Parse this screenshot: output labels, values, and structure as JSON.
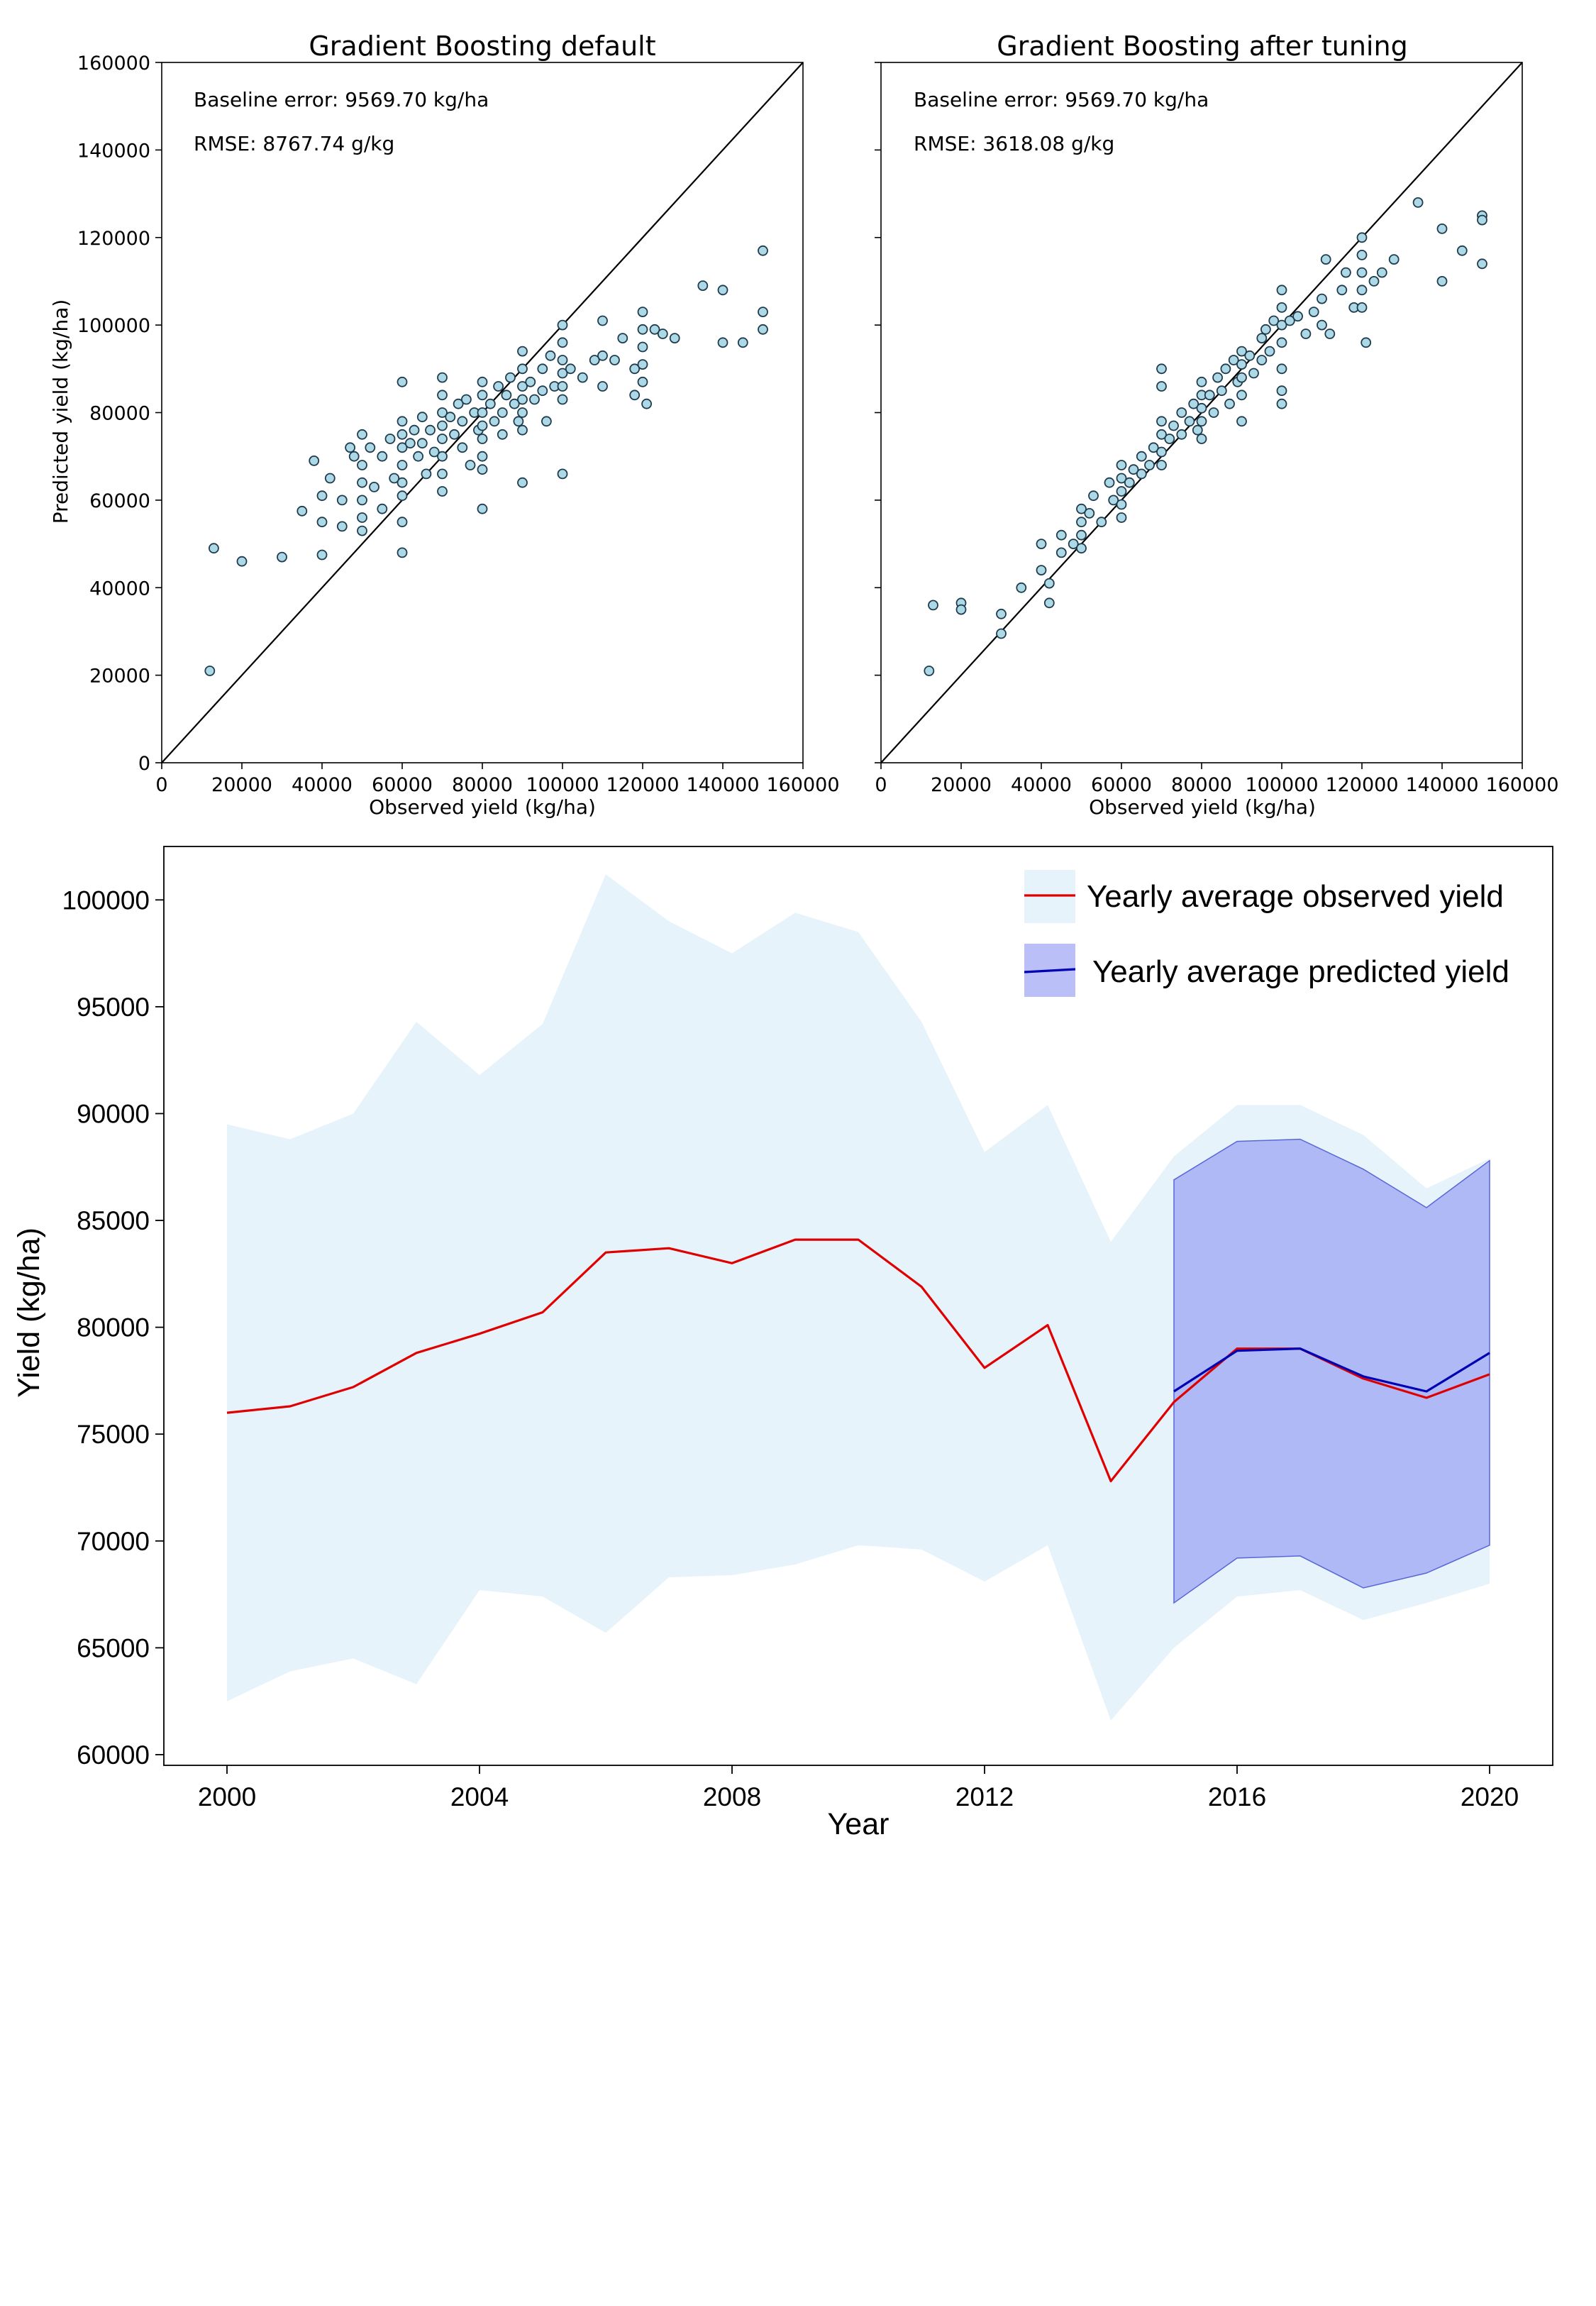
{
  "chart_data": [
    {
      "type": "scatter",
      "title": "Gradient Boosting default",
      "xlabel": "Observed yield (kg/ha)",
      "ylabel": "Predicted yield (kg/ha)",
      "xlim": [
        0,
        160000
      ],
      "ylim": [
        0,
        160000
      ],
      "xticks": [
        "0",
        "20000",
        "40000",
        "60000",
        "80000",
        "100000",
        "120000",
        "140000",
        "160000"
      ],
      "yticks": [
        "0",
        "20000",
        "40000",
        "60000",
        "80000",
        "100000",
        "120000",
        "140000",
        "160000"
      ],
      "annotations": [
        "Baseline error: 9569.70 kg/ha",
        "RMSE: 8767.74 g/kg"
      ],
      "identity_line": true,
      "marker_color": "#add8e6",
      "edge_color": "#1f3b4d",
      "points": [
        [
          12000,
          21000
        ],
        [
          13000,
          49000
        ],
        [
          20000,
          46000
        ],
        [
          30000,
          47000
        ],
        [
          35000,
          57500
        ],
        [
          38000,
          69000
        ],
        [
          40000,
          61000
        ],
        [
          40000,
          55000
        ],
        [
          40000,
          47500
        ],
        [
          42000,
          65000
        ],
        [
          45000,
          60000
        ],
        [
          45000,
          54000
        ],
        [
          47000,
          72000
        ],
        [
          48000,
          70000
        ],
        [
          50000,
          75000
        ],
        [
          50000,
          68000
        ],
        [
          50000,
          64000
        ],
        [
          50000,
          60000
        ],
        [
          50000,
          56000
        ],
        [
          50000,
          53000
        ],
        [
          52000,
          72000
        ],
        [
          53000,
          63000
        ],
        [
          55000,
          70000
        ],
        [
          55000,
          58000
        ],
        [
          57000,
          74000
        ],
        [
          58000,
          65000
        ],
        [
          60000,
          87000
        ],
        [
          60000,
          78000
        ],
        [
          60000,
          75000
        ],
        [
          60000,
          72000
        ],
        [
          60000,
          68000
        ],
        [
          60000,
          64000
        ],
        [
          60000,
          61000
        ],
        [
          60000,
          55000
        ],
        [
          60000,
          48000
        ],
        [
          62000,
          73000
        ],
        [
          63000,
          76000
        ],
        [
          64000,
          70000
        ],
        [
          65000,
          79000
        ],
        [
          65000,
          73000
        ],
        [
          66000,
          66000
        ],
        [
          67000,
          76000
        ],
        [
          68000,
          71000
        ],
        [
          70000,
          88000
        ],
        [
          70000,
          84000
        ],
        [
          70000,
          80000
        ],
        [
          70000,
          77000
        ],
        [
          70000,
          74000
        ],
        [
          70000,
          70000
        ],
        [
          70000,
          66000
        ],
        [
          70000,
          62000
        ],
        [
          72000,
          79000
        ],
        [
          73000,
          75000
        ],
        [
          74000,
          82000
        ],
        [
          75000,
          78000
        ],
        [
          75000,
          72000
        ],
        [
          76000,
          83000
        ],
        [
          77000,
          68000
        ],
        [
          78000,
          80000
        ],
        [
          79000,
          76000
        ],
        [
          80000,
          87000
        ],
        [
          80000,
          84000
        ],
        [
          80000,
          80000
        ],
        [
          80000,
          77000
        ],
        [
          80000,
          74000
        ],
        [
          80000,
          70000
        ],
        [
          80000,
          67000
        ],
        [
          80000,
          58000
        ],
        [
          82000,
          82000
        ],
        [
          83000,
          78000
        ],
        [
          84000,
          86000
        ],
        [
          85000,
          80000
        ],
        [
          85000,
          75000
        ],
        [
          86000,
          84000
        ],
        [
          87000,
          88000
        ],
        [
          88000,
          82000
        ],
        [
          89000,
          78000
        ],
        [
          90000,
          94000
        ],
        [
          90000,
          90000
        ],
        [
          90000,
          86000
        ],
        [
          90000,
          83000
        ],
        [
          90000,
          80000
        ],
        [
          90000,
          76000
        ],
        [
          90000,
          64000
        ],
        [
          92000,
          87000
        ],
        [
          93000,
          83000
        ],
        [
          95000,
          90000
        ],
        [
          95000,
          85000
        ],
        [
          96000,
          78000
        ],
        [
          97000,
          93000
        ],
        [
          98000,
          86000
        ],
        [
          100000,
          100000
        ],
        [
          100000,
          96000
        ],
        [
          100000,
          92000
        ],
        [
          100000,
          89000
        ],
        [
          100000,
          86000
        ],
        [
          100000,
          83000
        ],
        [
          100000,
          66000
        ],
        [
          102000,
          90000
        ],
        [
          105000,
          88000
        ],
        [
          108000,
          92000
        ],
        [
          110000,
          101000
        ],
        [
          110000,
          93000
        ],
        [
          110000,
          86000
        ],
        [
          113000,
          92000
        ],
        [
          115000,
          97000
        ],
        [
          118000,
          90000
        ],
        [
          118000,
          84000
        ],
        [
          120000,
          103000
        ],
        [
          120000,
          99000
        ],
        [
          120000,
          95000
        ],
        [
          120000,
          91000
        ],
        [
          120000,
          87000
        ],
        [
          121000,
          82000
        ],
        [
          123000,
          99000
        ],
        [
          125000,
          98000
        ],
        [
          128000,
          97000
        ],
        [
          135000,
          109000
        ],
        [
          140000,
          108000
        ],
        [
          140000,
          96000
        ],
        [
          145000,
          96000
        ],
        [
          150000,
          117000
        ],
        [
          150000,
          103000
        ],
        [
          150000,
          99000
        ]
      ]
    },
    {
      "type": "scatter",
      "title": "Gradient Boosting after tuning",
      "xlabel": "Observed yield (kg/ha)",
      "xlim": [
        0,
        160000
      ],
      "ylim": [
        0,
        160000
      ],
      "xticks": [
        "0",
        "20000",
        "40000",
        "60000",
        "80000",
        "100000",
        "120000",
        "140000",
        "160000"
      ],
      "annotations": [
        "Baseline error: 9569.70 kg/ha",
        "RMSE: 3618.08 g/kg"
      ],
      "identity_line": true,
      "marker_color": "#add8e6",
      "edge_color": "#1f3b4d",
      "points": [
        [
          12000,
          21000
        ],
        [
          13000,
          36000
        ],
        [
          20000,
          36500
        ],
        [
          20000,
          35000
        ],
        [
          30000,
          29500
        ],
        [
          30000,
          34000
        ],
        [
          35000,
          40000
        ],
        [
          40000,
          50000
        ],
        [
          40000,
          44000
        ],
        [
          42000,
          36500
        ],
        [
          42000,
          41000
        ],
        [
          45000,
          48000
        ],
        [
          45000,
          52000
        ],
        [
          48000,
          50000
        ],
        [
          50000,
          58000
        ],
        [
          50000,
          55000
        ],
        [
          50000,
          52000
        ],
        [
          50000,
          49000
        ],
        [
          52000,
          57000
        ],
        [
          53000,
          61000
        ],
        [
          55000,
          55000
        ],
        [
          57000,
          64000
        ],
        [
          58000,
          60000
        ],
        [
          60000,
          68000
        ],
        [
          60000,
          65000
        ],
        [
          60000,
          62000
        ],
        [
          60000,
          59000
        ],
        [
          60000,
          56000
        ],
        [
          62000,
          64000
        ],
        [
          63000,
          67000
        ],
        [
          65000,
          70000
        ],
        [
          65000,
          66000
        ],
        [
          67000,
          68000
        ],
        [
          68000,
          72000
        ],
        [
          70000,
          90000
        ],
        [
          70000,
          86000
        ],
        [
          70000,
          78000
        ],
        [
          70000,
          75000
        ],
        [
          70000,
          71000
        ],
        [
          70000,
          68000
        ],
        [
          72000,
          74000
        ],
        [
          73000,
          77000
        ],
        [
          75000,
          80000
        ],
        [
          75000,
          75000
        ],
        [
          77000,
          78000
        ],
        [
          78000,
          82000
        ],
        [
          79000,
          76000
        ],
        [
          80000,
          87000
        ],
        [
          80000,
          84000
        ],
        [
          80000,
          81000
        ],
        [
          80000,
          78000
        ],
        [
          80000,
          74000
        ],
        [
          82000,
          84000
        ],
        [
          83000,
          80000
        ],
        [
          84000,
          88000
        ],
        [
          85000,
          85000
        ],
        [
          86000,
          90000
        ],
        [
          87000,
          82000
        ],
        [
          88000,
          92000
        ],
        [
          89000,
          87000
        ],
        [
          90000,
          94000
        ],
        [
          90000,
          91000
        ],
        [
          90000,
          88000
        ],
        [
          90000,
          84000
        ],
        [
          90000,
          78000
        ],
        [
          92000,
          93000
        ],
        [
          93000,
          89000
        ],
        [
          95000,
          97000
        ],
        [
          95000,
          92000
        ],
        [
          96000,
          99000
        ],
        [
          97000,
          94000
        ],
        [
          98000,
          101000
        ],
        [
          100000,
          108000
        ],
        [
          100000,
          104000
        ],
        [
          100000,
          100000
        ],
        [
          100000,
          96000
        ],
        [
          100000,
          90000
        ],
        [
          100000,
          85000
        ],
        [
          100000,
          82000
        ],
        [
          102000,
          101000
        ],
        [
          104000,
          102000
        ],
        [
          106000,
          98000
        ],
        [
          108000,
          103000
        ],
        [
          110000,
          106000
        ],
        [
          110000,
          100000
        ],
        [
          111000,
          115000
        ],
        [
          112000,
          98000
        ],
        [
          115000,
          108000
        ],
        [
          116000,
          112000
        ],
        [
          118000,
          104000
        ],
        [
          120000,
          120000
        ],
        [
          120000,
          116000
        ],
        [
          120000,
          112000
        ],
        [
          120000,
          108000
        ],
        [
          120000,
          104000
        ],
        [
          121000,
          96000
        ],
        [
          123000,
          110000
        ],
        [
          125000,
          112000
        ],
        [
          128000,
          115000
        ],
        [
          134000,
          128000
        ],
        [
          140000,
          122000
        ],
        [
          140000,
          110000
        ],
        [
          145000,
          117000
        ],
        [
          150000,
          125000
        ],
        [
          150000,
          124000
        ],
        [
          150000,
          114000
        ]
      ]
    },
    {
      "type": "line",
      "ylabel": "Yield (kg/ha)",
      "xlabel": "Year",
      "xlim": [
        1999,
        2021
      ],
      "ylim": [
        59500,
        102500
      ],
      "xticks": [
        "2000",
        "2004",
        "2008",
        "2012",
        "2016",
        "2020"
      ],
      "yticks": [
        "60000",
        "65000",
        "70000",
        "75000",
        "80000",
        "85000",
        "90000",
        "95000",
        "100000"
      ],
      "legend_position": "top-right",
      "observed": {
        "name": "Yearly average observed yield",
        "color": "#e00000",
        "band_color": "#d6ecf7",
        "x": [
          2000,
          2001,
          2002,
          2003,
          2004,
          2005,
          2006,
          2007,
          2008,
          2009,
          2010,
          2011,
          2012,
          2013,
          2014,
          2015,
          2016,
          2017,
          2018,
          2019,
          2020
        ],
        "values": [
          76000,
          76300,
          77200,
          78800,
          79700,
          80700,
          83500,
          83700,
          83000,
          84100,
          84100,
          81900,
          78100,
          80100,
          72800,
          76500,
          79000,
          79000,
          77600,
          76700,
          77800
        ],
        "upper": [
          89500,
          88800,
          90000,
          94300,
          91800,
          94200,
          101200,
          99000,
          97500,
          99400,
          98500,
          94300,
          88200,
          90400,
          84000,
          88000,
          90400,
          90400,
          89000,
          86500,
          87900
        ],
        "lower": [
          62500,
          63900,
          64500,
          63300,
          67700,
          67400,
          65700,
          68300,
          68400,
          68900,
          69800,
          69600,
          68100,
          69800,
          61600,
          65000,
          67400,
          67700,
          66300,
          67100,
          68000
        ]
      },
      "predicted": {
        "name": "Yearly average predicted yield",
        "color": "#0000b4",
        "band_color": "#7a85f0",
        "x": [
          2015,
          2016,
          2017,
          2018,
          2019,
          2020
        ],
        "values": [
          77000,
          78900,
          79000,
          77700,
          77000,
          78800
        ],
        "upper": [
          86900,
          88700,
          88800,
          87400,
          85600,
          87800
        ],
        "lower": [
          67100,
          69200,
          69300,
          67800,
          68500,
          69800
        ]
      }
    }
  ]
}
